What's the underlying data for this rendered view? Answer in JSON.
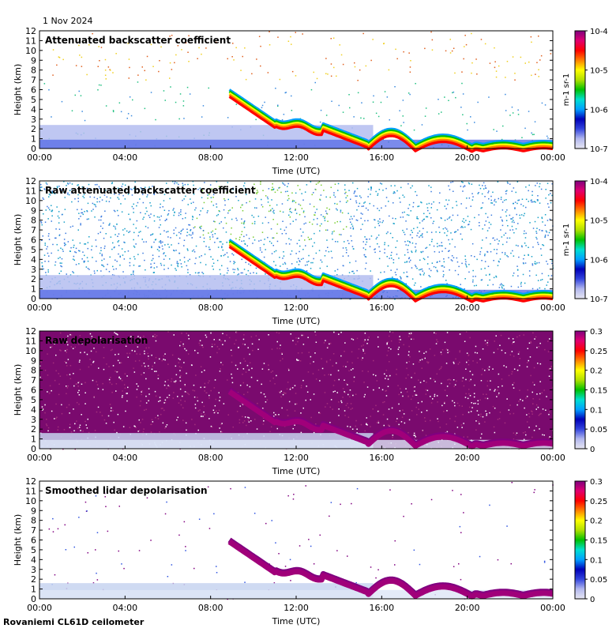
{
  "header": {
    "date": "1 Nov 2024"
  },
  "footer": {
    "site": "Rovaniemi CL61D ceilometer"
  },
  "colorbar_ramp": [
    "#e6e6f2",
    "#b3b8ee",
    "#3344dd",
    "#0000b8",
    "#00a0ff",
    "#00e0d0",
    "#00c000",
    "#b0e000",
    "#ffff00",
    "#ff8000",
    "#ff0000",
    "#e00070",
    "#800080"
  ],
  "chart_data": [
    {
      "type": "heatmap",
      "title": "Attenuated backscatter coefficient",
      "xlabel": "Time (UTC)",
      "ylabel": "Height (km)",
      "x_ticks": [
        "00:00",
        "04:00",
        "08:00",
        "12:00",
        "16:00",
        "20:00",
        "00:00"
      ],
      "y_ticks": [
        0,
        1,
        2,
        3,
        4,
        5,
        6,
        7,
        8,
        9,
        10,
        11,
        12
      ],
      "ylim": [
        0,
        12
      ],
      "colorbar": {
        "scale": "log",
        "ticks": [
          "10-7",
          "10-6",
          "10-5",
          "10-4"
        ],
        "unit": "m-1 sr-1"
      }
    },
    {
      "type": "heatmap",
      "title": "Raw attenuated backscatter coefficient",
      "xlabel": "Time (UTC)",
      "ylabel": "Height (km)",
      "x_ticks": [
        "00:00",
        "04:00",
        "08:00",
        "12:00",
        "16:00",
        "20:00",
        "00:00"
      ],
      "y_ticks": [
        0,
        1,
        2,
        3,
        4,
        5,
        6,
        7,
        8,
        9,
        10,
        11,
        12
      ],
      "ylim": [
        0,
        12
      ],
      "colorbar": {
        "scale": "log",
        "ticks": [
          "10-7",
          "10-6",
          "10-5",
          "10-4"
        ],
        "unit": "m-1 sr-1"
      }
    },
    {
      "type": "heatmap",
      "title": "Raw depolarisation",
      "xlabel": "Time (UTC)",
      "ylabel": "Height (km)",
      "x_ticks": [
        "00:00",
        "04:00",
        "08:00",
        "12:00",
        "16:00",
        "20:00",
        "00:00"
      ],
      "y_ticks": [
        0,
        1,
        2,
        3,
        4,
        5,
        6,
        7,
        8,
        9,
        10,
        11,
        12
      ],
      "ylim": [
        0,
        12
      ],
      "colorbar": {
        "scale": "linear",
        "ticks": [
          "0",
          "0.05",
          "0.1",
          "0.15",
          "0.2",
          "0.25",
          "0.3"
        ],
        "unit": ""
      }
    },
    {
      "type": "heatmap",
      "title": "Smoothed lidar depolarisation",
      "xlabel": "Time (UTC)",
      "ylabel": "Height (km)",
      "x_ticks": [
        "00:00",
        "04:00",
        "08:00",
        "12:00",
        "16:00",
        "20:00",
        "00:00"
      ],
      "y_ticks": [
        0,
        1,
        2,
        3,
        4,
        5,
        6,
        7,
        8,
        9,
        10,
        11,
        12
      ],
      "ylim": [
        0,
        12
      ],
      "colorbar": {
        "scale": "linear",
        "ticks": [
          "0",
          "0.05",
          "0.1",
          "0.15",
          "0.2",
          "0.25",
          "0.3"
        ],
        "unit": ""
      }
    }
  ]
}
